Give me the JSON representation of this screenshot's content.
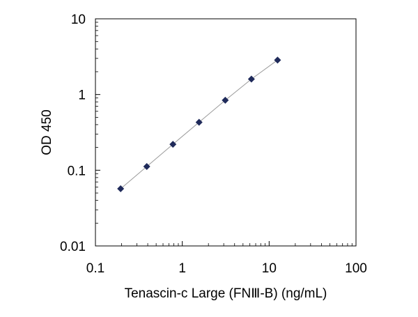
{
  "chart_data": {
    "type": "scatter",
    "x_scale": "log",
    "y_scale": "log",
    "xlabel": "Tenascin-c Large (FNⅢ-B)  (ng/mL)",
    "ylabel": "OD 450",
    "xlim": [
      0.1,
      100
    ],
    "ylim": [
      0.01,
      10
    ],
    "x_ticks": [
      0.1,
      1,
      10,
      100
    ],
    "x_tick_labels": [
      "0.1",
      "1",
      "10",
      "100"
    ],
    "y_ticks": [
      0.01,
      0.1,
      1,
      10
    ],
    "y_tick_labels": [
      "0.01",
      "0.1",
      "1",
      "10"
    ],
    "grid": false,
    "trendline": true,
    "series": [
      {
        "marker": "diamond",
        "color": "#1f2a5a",
        "line_color": "#9a9a9a",
        "x": [
          0.195,
          0.39,
          0.78,
          1.56,
          3.125,
          6.25,
          12.5
        ],
        "y": [
          0.057,
          0.112,
          0.22,
          0.43,
          0.84,
          1.6,
          2.85
        ]
      }
    ]
  }
}
